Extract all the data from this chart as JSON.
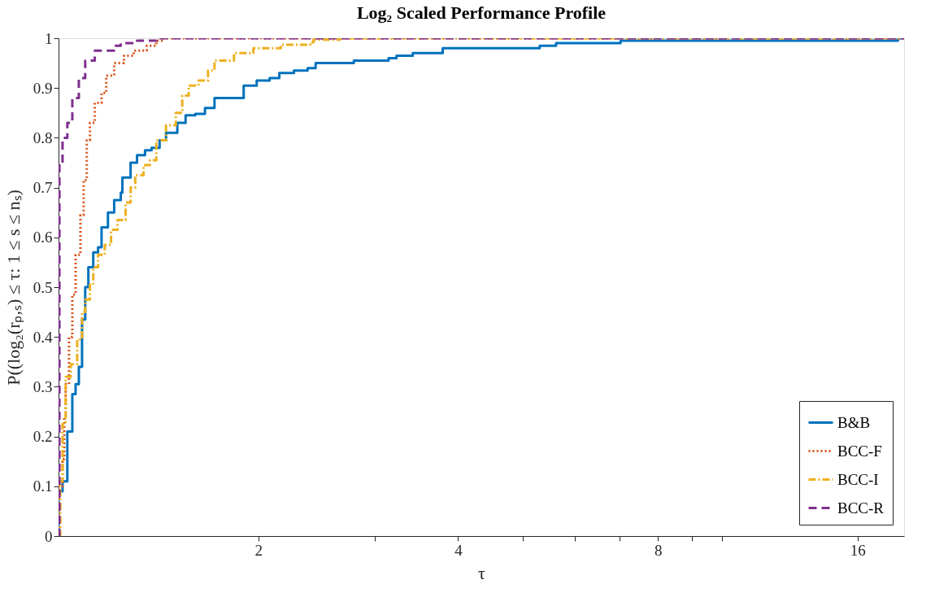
{
  "chart_data": {
    "type": "step",
    "title": "Log₂ Scaled Performance Profile",
    "xlabel": "τ",
    "ylabel": "P((log₂(rₚ,ₛ) ≤ τ: 1 ≤ s ≤ nₛ)",
    "log": "x",
    "xlim": [
      1,
      18.8
    ],
    "ylim": [
      0,
      1
    ],
    "xticks": [
      2,
      4,
      8,
      16,
      {
        "value": 3,
        "label": null
      },
      {
        "value": 5,
        "label": null
      },
      {
        "value": 6,
        "label": null
      },
      {
        "value": 7,
        "label": null
      },
      {
        "value": 9,
        "label": null
      },
      {
        "value": 10,
        "label": null
      }
    ],
    "yticks": [
      0,
      0.1,
      0.2,
      0.3,
      0.4,
      0.5,
      0.6,
      0.7,
      0.8,
      0.9,
      1
    ],
    "grid": false,
    "legend": "bottom right",
    "marker": "none",
    "series": [
      {
        "name": "B&B",
        "color": "#0072bd",
        "line_style": "solid",
        "x": [
          1.0,
          1.0,
          1.014,
          1.031,
          1.049,
          1.061,
          1.073,
          1.085,
          1.097,
          1.109,
          1.128,
          1.147,
          1.161,
          1.187,
          1.213,
          1.241,
          1.248,
          1.284,
          1.313,
          1.35,
          1.381,
          1.42,
          1.452,
          1.51,
          1.554,
          1.607,
          1.662,
          1.718,
          1.901,
          1.989,
          2.08,
          2.151,
          2.263,
          2.373,
          2.44,
          2.786,
          3.143,
          3.231,
          3.418,
          3.792,
          5.31,
          5.62,
          7.03,
          18.4,
          18.8
        ],
        "values": [
          0,
          0.09,
          0.11,
          0.21,
          0.285,
          0.305,
          0.34,
          0.435,
          0.5,
          0.54,
          0.57,
          0.58,
          0.62,
          0.65,
          0.675,
          0.69,
          0.72,
          0.75,
          0.765,
          0.775,
          0.78,
          0.795,
          0.81,
          0.83,
          0.845,
          0.848,
          0.86,
          0.88,
          0.905,
          0.915,
          0.92,
          0.93,
          0.935,
          0.94,
          0.95,
          0.955,
          0.96,
          0.965,
          0.97,
          0.98,
          0.985,
          0.99,
          0.995,
          1.0,
          1.0
        ]
      },
      {
        "name": "BCC-F",
        "color": "#d95319",
        "line_style": "dotted",
        "x": [
          1.0,
          1.0,
          1.014,
          1.02,
          1.025,
          1.037,
          1.049,
          1.061,
          1.079,
          1.091,
          1.103,
          1.115,
          1.134,
          1.161,
          1.18,
          1.213,
          1.255,
          1.298,
          1.358,
          1.404,
          1.436,
          18.8
        ],
        "values": [
          0,
          0.1,
          0.155,
          0.24,
          0.305,
          0.4,
          0.485,
          0.565,
          0.645,
          0.715,
          0.795,
          0.83,
          0.87,
          0.89,
          0.925,
          0.95,
          0.965,
          0.975,
          0.985,
          0.995,
          1.0,
          1.0
        ]
      },
      {
        "name": "BCC-I",
        "color": "#edb120",
        "line_style": "dashdot",
        "x": [
          1.0,
          1.006,
          1.014,
          1.025,
          1.043,
          1.067,
          1.085,
          1.097,
          1.115,
          1.128,
          1.147,
          1.174,
          1.2,
          1.227,
          1.262,
          1.284,
          1.305,
          1.343,
          1.373,
          1.404,
          1.452,
          1.502,
          1.536,
          1.571,
          1.625,
          1.68,
          1.718,
          1.838,
          1.966,
          2.163,
          2.394,
          2.422,
          2.655,
          18.8
        ],
        "values": [
          0,
          0.11,
          0.225,
          0.32,
          0.345,
          0.395,
          0.45,
          0.475,
          0.505,
          0.54,
          0.565,
          0.585,
          0.615,
          0.635,
          0.67,
          0.7,
          0.725,
          0.745,
          0.755,
          0.795,
          0.825,
          0.85,
          0.885,
          0.905,
          0.915,
          0.935,
          0.955,
          0.97,
          0.98,
          0.987,
          0.992,
          0.997,
          1.0,
          1.0
        ]
      },
      {
        "name": "BCC-R",
        "color": "#7e2f8e",
        "line_style": "dashed",
        "x": [
          1.0,
          1.003,
          1.014,
          1.031,
          1.049,
          1.073,
          1.097,
          1.134,
          1.213,
          1.241,
          1.313,
          1.404,
          18.8
        ],
        "values": [
          0,
          0.75,
          0.8,
          0.83,
          0.88,
          0.92,
          0.955,
          0.975,
          0.985,
          0.99,
          0.995,
          1.0,
          1.0
        ]
      }
    ]
  }
}
